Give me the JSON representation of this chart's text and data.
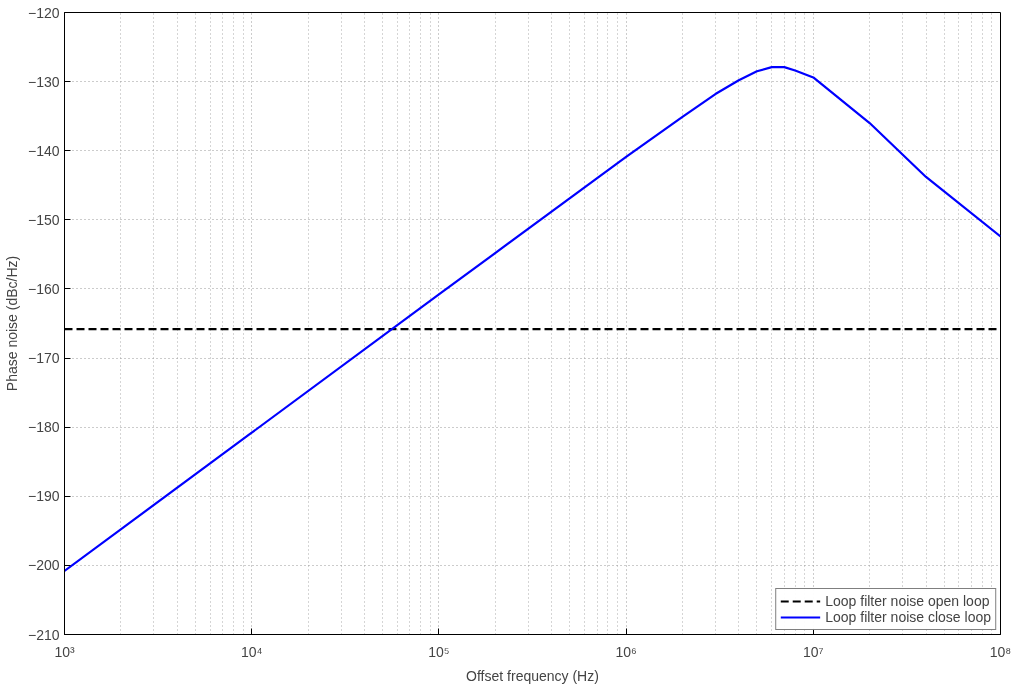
{
  "chart_data": {
    "type": "line",
    "xlabel": "Offset frequency (Hz)",
    "ylabel": "Phase noise (dBc/Hz)",
    "log": "x",
    "grid": true,
    "legend": "bottom right",
    "xlim": [
      1000,
      100000000
    ],
    "ylim": [
      -210,
      -120
    ],
    "xticks": [
      {
        "value": 1000,
        "label": "10³"
      },
      {
        "value": 10000,
        "label": "10⁴"
      },
      {
        "value": 100000,
        "label": "10⁵"
      },
      {
        "value": 1000000,
        "label": "10⁶"
      },
      {
        "value": 10000000,
        "label": "10⁷"
      },
      {
        "value": 100000000,
        "label": "10⁸"
      }
    ],
    "yticks": [
      -210,
      -200,
      -190,
      -180,
      -170,
      -160,
      -150,
      -140,
      -130,
      -120
    ],
    "series": [
      {
        "name": "Loop filter noise open loop",
        "color": "#000000",
        "line_style": "dashed",
        "x": [
          1000,
          100000000
        ],
        "values": [
          -165.8,
          -165.8
        ]
      },
      {
        "name": "Loop filter noise close loop",
        "color": "#0000ff",
        "line_style": "solid",
        "x": [
          1000,
          10000,
          100000,
          1000000,
          2000000,
          3000000,
          4000000,
          5000000,
          6000000,
          7000000,
          8000000,
          10000000,
          20000000,
          40000000,
          100000000
        ],
        "values": [
          -200.8,
          -180.8,
          -160.8,
          -140.9,
          -135.1,
          -131.8,
          -129.8,
          -128.5,
          -127.9,
          -127.9,
          -128.4,
          -129.4,
          -136.0,
          -143.8,
          -152.4
        ]
      }
    ]
  }
}
